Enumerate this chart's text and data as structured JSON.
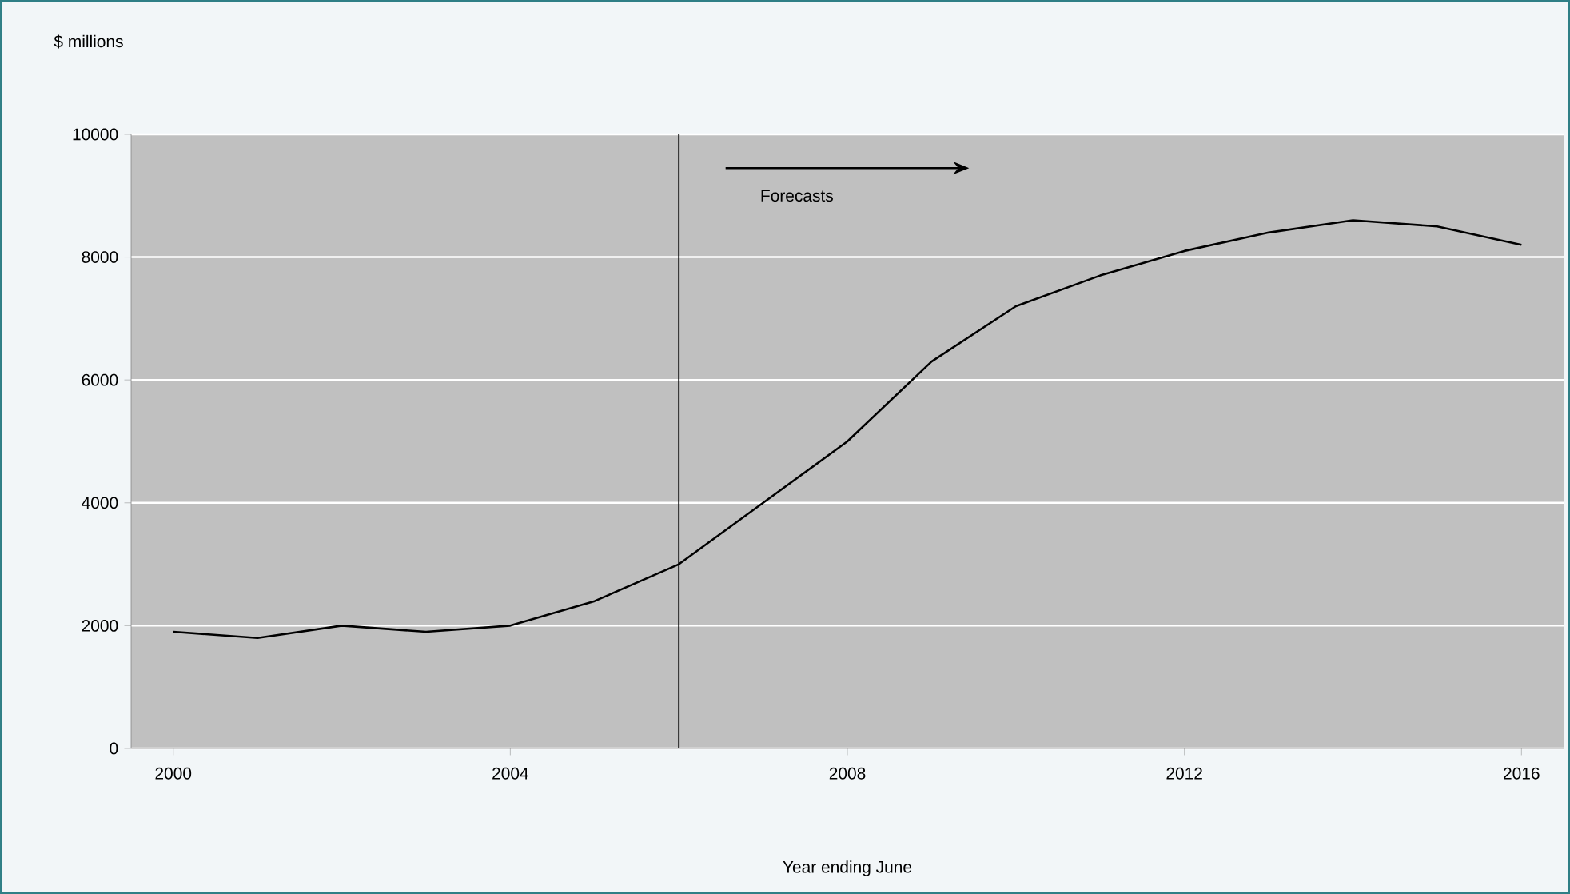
{
  "chart_data": {
    "type": "line",
    "ylabel": "$ millions",
    "xlabel": "Year ending June",
    "x": [
      2000,
      2001,
      2002,
      2003,
      2004,
      2005,
      2006,
      2007,
      2008,
      2009,
      2010,
      2011,
      2012,
      2013,
      2014,
      2015,
      2016
    ],
    "series": [
      {
        "color": "#000000",
        "values": [
          1900,
          1800,
          2000,
          1900,
          2000,
          2400,
          3000,
          4000,
          5000,
          6300,
          7200,
          7700,
          8100,
          8400,
          8600,
          8500,
          8200
        ]
      }
    ],
    "xlim": [
      1999.5,
      2016.5
    ],
    "xticks": [
      2000,
      2004,
      2008,
      2012,
      2016
    ],
    "ylim": [
      0,
      10000
    ],
    "yticks": [
      0,
      2000,
      4000,
      6000,
      8000,
      10000
    ],
    "grid": "y",
    "marker": "none",
    "line_style": "solid",
    "ref_lines": [
      {
        "axis": "x",
        "value": 2006,
        "color": "#000000"
      }
    ],
    "annotations": [
      "Forecasts"
    ]
  }
}
